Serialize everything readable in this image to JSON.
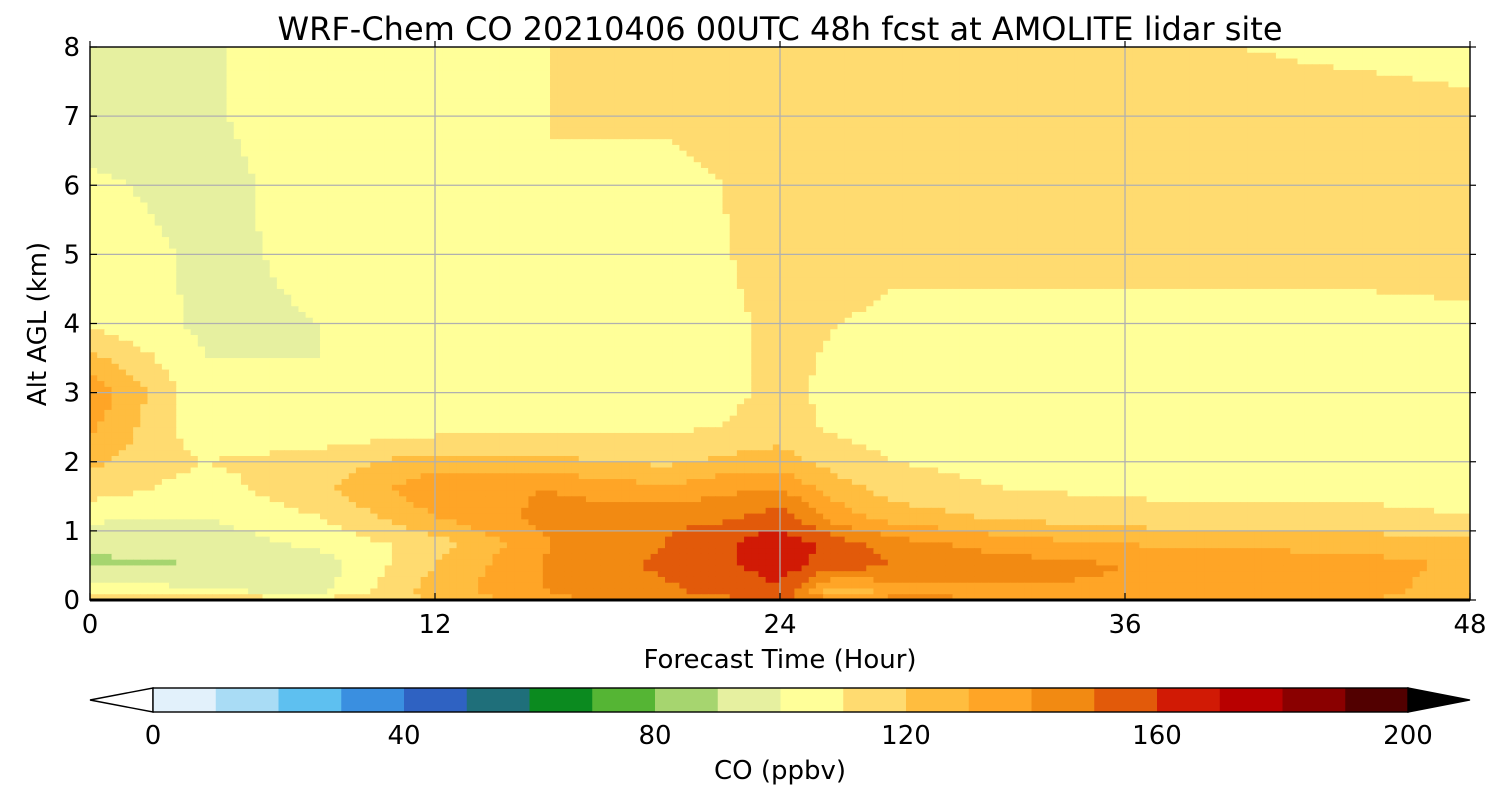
{
  "chart_data": {
    "type": "heatmap",
    "title": "WRF-Chem CO  20210406 00UTC 48h fcst at AMOLITE lidar site",
    "xlabel": "Forecast Time (Hour)",
    "ylabel": "Alt AGL (km)",
    "xlim": [
      0,
      48
    ],
    "ylim": [
      0,
      8
    ],
    "xticks": [
      0,
      12,
      24,
      36,
      48
    ],
    "yticks": [
      0,
      1,
      2,
      3,
      4,
      5,
      6,
      7,
      8
    ],
    "grid": true,
    "x_hours": [
      0,
      4,
      8,
      12,
      16,
      20,
      22,
      24,
      26,
      28,
      32,
      36,
      40,
      44,
      48
    ],
    "y_km": [
      0,
      0.1,
      0.5,
      0.8,
      1.2,
      1.6,
      2,
      2.5,
      3,
      4,
      5,
      6,
      7,
      8
    ],
    "values_ppbv": [
      [
        130,
        128,
        126,
        130,
        148,
        155,
        158,
        162,
        158,
        155,
        150,
        145,
        140,
        138,
        135
      ],
      [
        118,
        112,
        108,
        135,
        150,
        158,
        162,
        168,
        130,
        145,
        148,
        148,
        150,
        148,
        130
      ],
      [
        98,
        100,
        105,
        130,
        152,
        162,
        168,
        175,
        165,
        160,
        155,
        150,
        148,
        145,
        138
      ],
      [
        102,
        104,
        112,
        125,
        150,
        160,
        168,
        178,
        165,
        155,
        145,
        140,
        138,
        136,
        134
      ],
      [
        112,
        110,
        120,
        140,
        153,
        158,
        158,
        165,
        145,
        135,
        128,
        124,
        122,
        122,
        120
      ],
      [
        125,
        115,
        128,
        148,
        150,
        142,
        148,
        150,
        135,
        125,
        120,
        118,
        118,
        118,
        118
      ],
      [
        132,
        120,
        125,
        135,
        132,
        128,
        132,
        135,
        125,
        120,
        116,
        115,
        114,
        114,
        115
      ],
      [
        142,
        112,
        112,
        115,
        118,
        118,
        120,
        124,
        118,
        116,
        115,
        114,
        114,
        115,
        116
      ],
      [
        148,
        112,
        110,
        112,
        115,
        116,
        118,
        122,
        118,
        116,
        115,
        115,
        116,
        118,
        118
      ],
      [
        118,
        108,
        110,
        114,
        115,
        116,
        118,
        122,
        120,
        118,
        118,
        118,
        118,
        118,
        118
      ],
      [
        116,
        108,
        112,
        115,
        118,
        116,
        119,
        125,
        125,
        122,
        122,
        122,
        122,
        122,
        124
      ],
      [
        112,
        106,
        115,
        118,
        120,
        118,
        120,
        126,
        127,
        125,
        128,
        124,
        124,
        126,
        124
      ],
      [
        104,
        108,
        118,
        120,
        120,
        121,
        122,
        128,
        127,
        125,
        126,
        122,
        124,
        124,
        122
      ],
      [
        102,
        108,
        118,
        118,
        120,
        121,
        124,
        130,
        126,
        124,
        124,
        122,
        120,
        118,
        117
      ]
    ],
    "colorbar": {
      "label": "CO  (ppbv)",
      "ticks": [
        0,
        40,
        80,
        120,
        160,
        200
      ],
      "range": [
        0,
        200
      ],
      "extend": "both",
      "colors": [
        "#ffffff",
        "#e2f1fb",
        "#a9dcf5",
        "#5ec0f0",
        "#3a8fe0",
        "#2f62c2",
        "#1f6f7a",
        "#0b8a1f",
        "#55b534",
        "#a6d56f",
        "#e6f0a0",
        "#ffff99",
        "#ffdb70",
        "#ffbd3f",
        "#ffa526",
        "#f28a12",
        "#e25a0a",
        "#d11a05",
        "#b80000",
        "#8a0000",
        "#520000",
        "#000000"
      ]
    }
  }
}
